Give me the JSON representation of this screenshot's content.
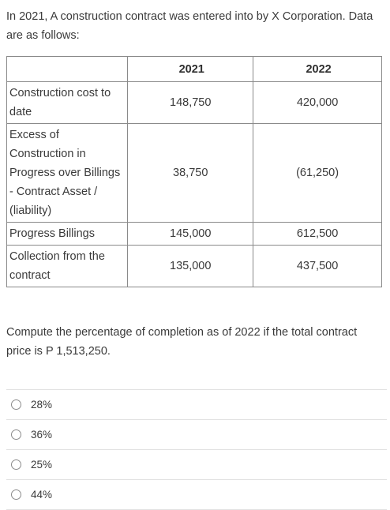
{
  "intro": "In 2021, A construction contract was entered into by X Corporation. Data are as follows:",
  "table": {
    "headers": [
      "",
      "2021",
      "2022"
    ],
    "rows": [
      {
        "label": "Construction cost to date",
        "y2021": "148,750",
        "y2022": "420,000"
      },
      {
        "label": "Excess of Construction in Progress over Billings - Contract Asset / (liability)",
        "y2021": "38,750",
        "y2022": "(61,250)"
      },
      {
        "label": "Progress Billings",
        "y2021": "145,000",
        "y2022": "612,500"
      },
      {
        "label": "Collection from the contract",
        "y2021": "135,000",
        "y2022": "437,500"
      }
    ]
  },
  "question": "Compute the percentage of completion as of 2022 if the total contract price is P 1,513,250.",
  "options": [
    {
      "label": "28%"
    },
    {
      "label": "36%"
    },
    {
      "label": "25%"
    },
    {
      "label": "44%"
    }
  ]
}
